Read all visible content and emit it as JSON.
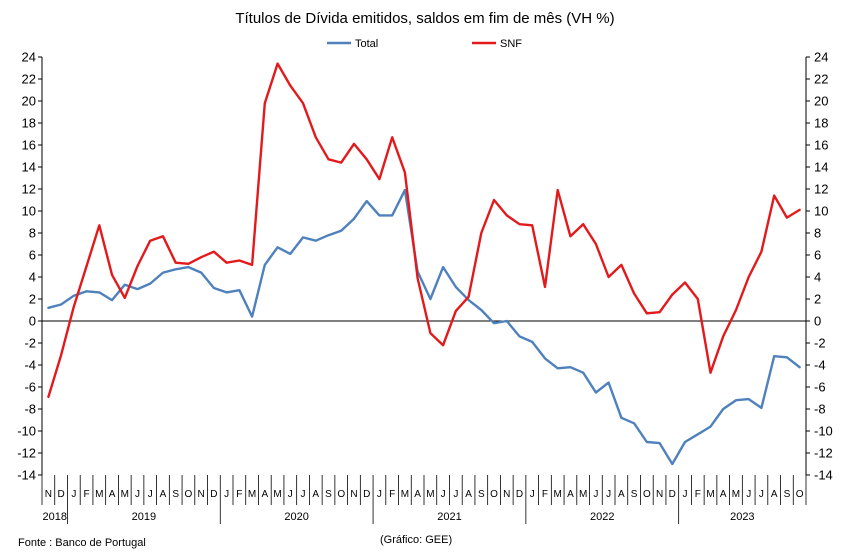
{
  "chart_data": {
    "type": "line",
    "title": "Títulos de Dívida emitidos, saldos em fim de mês  (VH %)",
    "source": "Fonte : Banco de Portugal",
    "credit": "(Gráfico: GEE)",
    "ylim": [
      -14,
      24
    ],
    "ytick_step": 2,
    "grid": false,
    "legend_position": "top-center",
    "month_labels": [
      "N",
      "D",
      "J",
      "F",
      "M",
      "A",
      "M",
      "J",
      "J",
      "A",
      "S",
      "O",
      "N",
      "D",
      "J",
      "F",
      "M",
      "A",
      "M",
      "J",
      "J",
      "A",
      "S",
      "O",
      "N",
      "D",
      "J",
      "F",
      "M",
      "A",
      "M",
      "J",
      "J",
      "A",
      "S",
      "O",
      "N",
      "D",
      "J",
      "F",
      "M",
      "A",
      "M",
      "J",
      "J",
      "A",
      "S",
      "O",
      "N",
      "D",
      "J",
      "F",
      "M",
      "A",
      "M",
      "J",
      "J",
      "A",
      "S",
      "O"
    ],
    "years": [
      {
        "label": "2018",
        "start": 0,
        "end": 1
      },
      {
        "label": "2019",
        "start": 2,
        "end": 13
      },
      {
        "label": "2020",
        "start": 14,
        "end": 25
      },
      {
        "label": "2021",
        "start": 26,
        "end": 37
      },
      {
        "label": "2022",
        "start": 38,
        "end": 49
      },
      {
        "label": "2023",
        "start": 50,
        "end": 59
      }
    ],
    "series": [
      {
        "name": "Total",
        "color": "#4f81bd",
        "values": [
          1.2,
          1.5,
          2.3,
          2.7,
          2.6,
          1.9,
          3.3,
          2.9,
          3.4,
          4.4,
          4.7,
          4.9,
          4.4,
          3.0,
          2.6,
          2.8,
          0.4,
          5.1,
          6.7,
          6.1,
          7.6,
          7.3,
          7.8,
          8.2,
          9.3,
          10.9,
          9.6,
          9.6,
          11.9,
          4.5,
          2.0,
          4.9,
          3.1,
          1.9,
          1.0,
          -0.2,
          0.0,
          -1.4,
          -1.9,
          -3.4,
          -4.3,
          -4.2,
          -4.7,
          -6.5,
          -5.6,
          -8.8,
          -9.3,
          -11.0,
          -11.1,
          -13.0,
          -11.0,
          -10.3,
          -9.6,
          -8.0,
          -7.2,
          -7.1,
          -7.9,
          -3.2,
          -3.3,
          -4.2
        ]
      },
      {
        "name": "SNF",
        "color": "#e31a1c",
        "values": [
          -6.9,
          -3.1,
          1.3,
          5.0,
          8.7,
          4.2,
          2.1,
          5.0,
          7.3,
          7.7,
          5.3,
          5.2,
          5.8,
          6.3,
          5.3,
          5.5,
          5.1,
          19.8,
          23.4,
          21.4,
          19.8,
          16.7,
          14.7,
          14.4,
          16.1,
          14.7,
          12.9,
          16.7,
          13.5,
          3.9,
          -1.1,
          -2.2,
          0.9,
          2.2,
          8.0,
          11.0,
          9.6,
          8.8,
          8.7,
          3.1,
          11.9,
          7.7,
          8.8,
          7.0,
          4.0,
          5.1,
          2.5,
          0.7,
          0.8,
          2.4,
          3.5,
          2.0,
          -4.7,
          -1.4,
          1.0,
          4.0,
          6.3,
          11.4,
          9.4,
          10.1
        ]
      }
    ]
  }
}
